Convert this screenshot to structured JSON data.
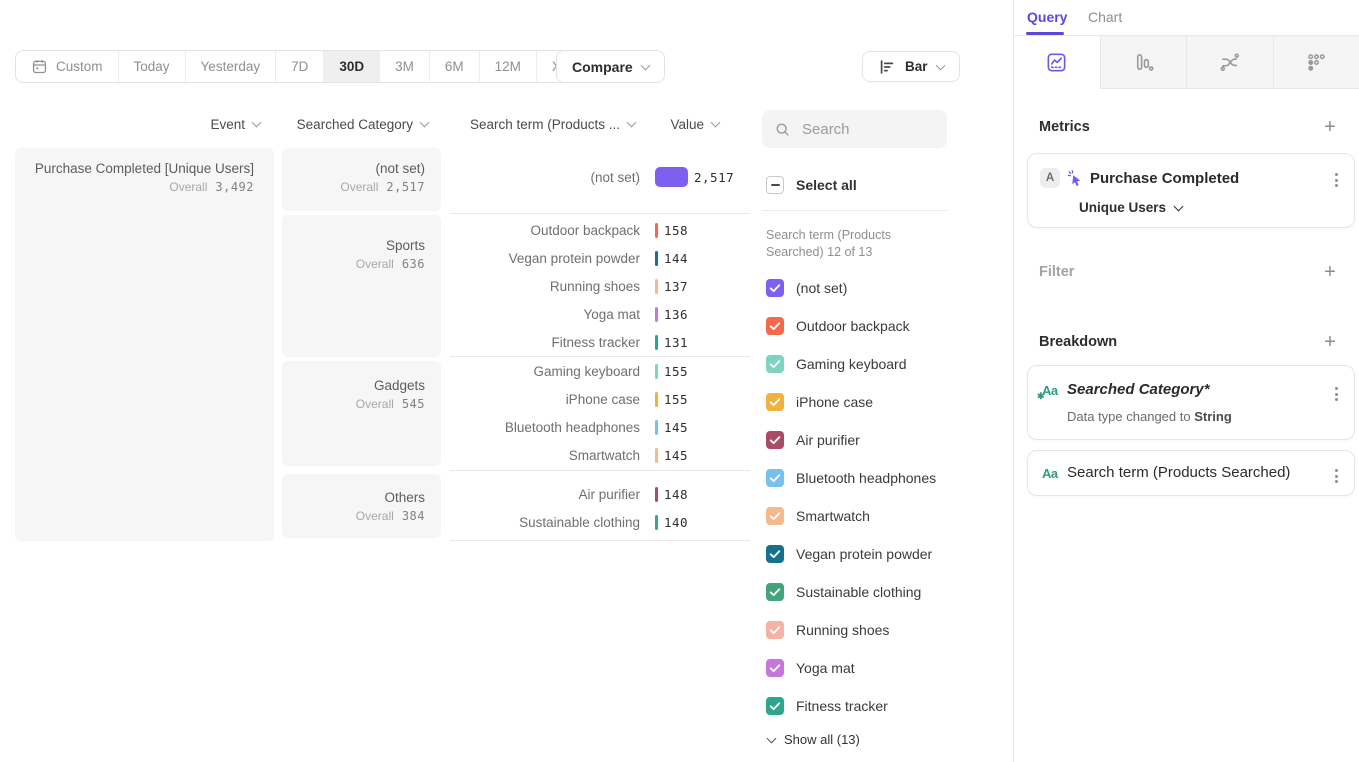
{
  "toolbar": {
    "date_segments": [
      {
        "label": "Custom",
        "icon": "calendar-icon",
        "selected": false
      },
      {
        "label": "Today",
        "selected": false
      },
      {
        "label": "Yesterday",
        "selected": false
      },
      {
        "label": "7D",
        "selected": false
      },
      {
        "label": "30D",
        "selected": true
      },
      {
        "label": "3M",
        "selected": false
      },
      {
        "label": "6M",
        "selected": false
      },
      {
        "label": "12M",
        "selected": false
      },
      {
        "label": "XTD",
        "selected": false,
        "chevron": true
      }
    ],
    "compare_label": "Compare",
    "chart_type": {
      "label": "Bar",
      "icon": "horizontal-bar-chart-icon"
    }
  },
  "table": {
    "headers": [
      {
        "label": "Event"
      },
      {
        "label": "Searched Category"
      },
      {
        "label": "Search term (Products ..."
      },
      {
        "label": "Value"
      }
    ],
    "overall_label": "Overall",
    "event": {
      "name": "Purchase Completed [Unique Users]",
      "overall": "3,492"
    },
    "groups": [
      {
        "category": "(not set)",
        "overall": "2,517",
        "rows": [
          {
            "term": "(not set)",
            "value_label": "2,517",
            "value": 2517,
            "color": "#7b61ee"
          }
        ]
      },
      {
        "category": "Sports",
        "overall": "636",
        "rows": [
          {
            "term": "Outdoor backpack",
            "value_label": "158",
            "value": 158,
            "color": "#f4694c"
          },
          {
            "term": "Vegan protein powder",
            "value_label": "144",
            "value": 144,
            "color": "#17708d"
          },
          {
            "term": "Running shoes",
            "value_label": "137",
            "value": 137,
            "color": "#f5b3a4"
          },
          {
            "term": "Yoga mat",
            "value_label": "136",
            "value": 136,
            "color": "#c678da"
          },
          {
            "term": "Fitness tracker",
            "value_label": "131",
            "value": 131,
            "color": "#2ea68d"
          }
        ]
      },
      {
        "category": "Gadgets",
        "overall": "545",
        "rows": [
          {
            "term": "Gaming keyboard",
            "value_label": "155",
            "value": 155,
            "color": "#7fd4c1"
          },
          {
            "term": "iPhone case",
            "value_label": "155",
            "value": 155,
            "color": "#f1b13e"
          },
          {
            "term": "Bluetooth headphones",
            "value_label": "145",
            "value": 145,
            "color": "#79c0ee"
          },
          {
            "term": "Smartwatch",
            "value_label": "145",
            "value": 145,
            "color": "#f6b88e"
          }
        ]
      },
      {
        "category": "Others",
        "overall": "384",
        "rows": [
          {
            "term": "Air purifier",
            "value_label": "148",
            "value": 148,
            "color": "#a94d66"
          },
          {
            "term": "Sustainable clothing",
            "value_label": "140",
            "value": 140,
            "color": "#41a47d"
          }
        ]
      }
    ]
  },
  "filter_panel": {
    "search_placeholder": "Search",
    "select_all_label": "Select all",
    "select_all_state": "indeterminate",
    "caption": "Search term (Products Searched) 12 of 13",
    "items": [
      {
        "label": "(not set)",
        "color": "#7b61ee",
        "checked": true
      },
      {
        "label": "Outdoor backpack",
        "color": "#f4694c",
        "checked": true
      },
      {
        "label": "Gaming keyboard",
        "color": "#7fd4c1",
        "checked": true
      },
      {
        "label": "iPhone case",
        "color": "#f1b13e",
        "checked": true
      },
      {
        "label": "Air purifier",
        "color": "#a94d66",
        "checked": true
      },
      {
        "label": "Bluetooth headphones",
        "color": "#79c0ee",
        "checked": true
      },
      {
        "label": "Smartwatch",
        "color": "#f6b88e",
        "checked": true
      },
      {
        "label": "Vegan protein powder",
        "color": "#17708d",
        "checked": true
      },
      {
        "label": "Sustainable clothing",
        "color": "#41a47d",
        "checked": true
      },
      {
        "label": "Running shoes",
        "color": "#f5b3a4",
        "checked": true
      },
      {
        "label": "Yoga mat",
        "color": "#c678da",
        "checked": true
      },
      {
        "label": "Fitness tracker",
        "color": "#2ea68d",
        "checked": true,
        "pattern": true
      }
    ],
    "show_all_label": "Show all (13)"
  },
  "query_panel": {
    "tabs": {
      "query": "Query",
      "chart": "Chart",
      "active": "Query"
    },
    "chart_tabs": [
      {
        "icon": "insights-icon",
        "active": true
      },
      {
        "icon": "funnels-icon",
        "active": false
      },
      {
        "icon": "flows-icon",
        "active": false
      },
      {
        "icon": "retention-icon",
        "active": false
      }
    ],
    "metrics": {
      "heading": "Metrics",
      "badge": "A",
      "event_icon": "event-spark-icon",
      "event_name": "Purchase Completed",
      "measurement": "Unique Users"
    },
    "filter": {
      "heading": "Filter"
    },
    "breakdown": {
      "heading": "Breakdown",
      "items": [
        {
          "icon": "data-type-aa-icon",
          "name": "Searched Category*",
          "italic": true,
          "modified": true,
          "note_prefix": "Data type changed to",
          "note_value": "String"
        },
        {
          "icon": "data-type-aa-icon",
          "name": "Search term (Products Searched)",
          "italic": false,
          "modified": false
        }
      ]
    }
  },
  "colors": {
    "accent_purple": "#5a49d8",
    "event_icon_purple": "#7856ff",
    "aa_icon_teal": "#2f9c80",
    "card_gray": "#f6f6f6",
    "border_gray": "#e7e7e7"
  }
}
